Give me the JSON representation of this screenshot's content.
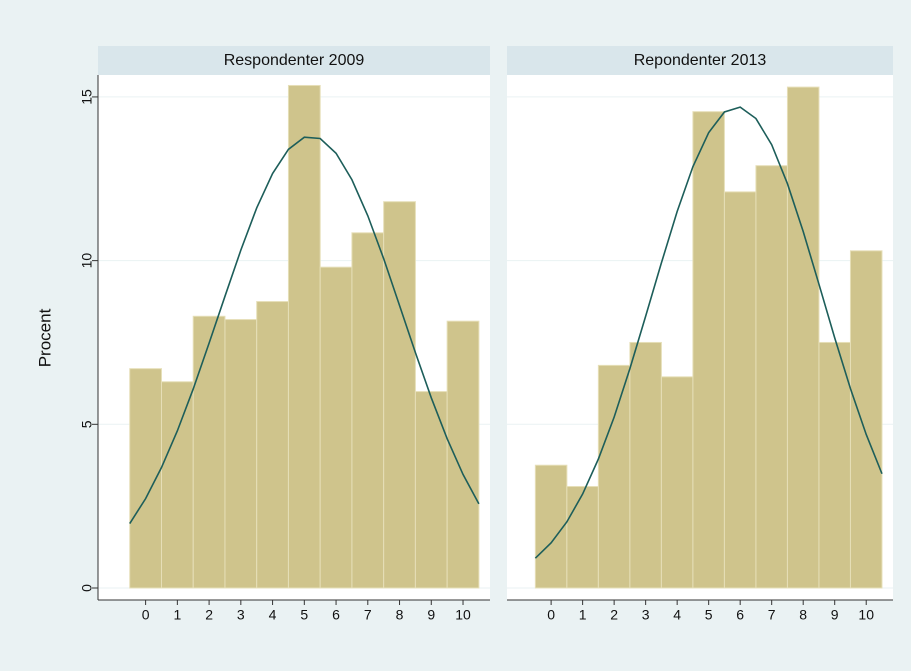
{
  "chart_data": [
    {
      "type": "histogram",
      "title": "Respondenter 2009",
      "ylabel": "Procent",
      "bins": [
        -0.5,
        0.5,
        1.5,
        2.5,
        3.5,
        4.5,
        5.5,
        6.5,
        7.5,
        8.5,
        9.5,
        10.5
      ],
      "values": [
        6.7,
        6.3,
        8.3,
        8.2,
        8.75,
        15.35,
        9.8,
        10.85,
        11.8,
        6.0,
        8.15
      ],
      "color": "#cfc48c",
      "grid": true,
      "xlim": [
        -1.5,
        10.85
      ],
      "xticks": [
        0,
        1,
        2,
        3,
        4,
        5,
        6,
        7,
        8,
        9,
        10
      ],
      "ylim": [
        0,
        15.67
      ],
      "yticks": [
        0,
        5,
        10,
        15
      ],
      "curve": {
        "color": "#1d5e5a",
        "x": [
          -0.5,
          0,
          0.5,
          1,
          1.5,
          2,
          2.5,
          3,
          3.5,
          4,
          4.5,
          5,
          5.5,
          6,
          6.5,
          7,
          7.5,
          8,
          8.5,
          9,
          9.5,
          10,
          10.5
        ],
        "values": [
          1.97,
          2.73,
          3.68,
          4.8,
          6.08,
          7.48,
          8.91,
          10.32,
          11.61,
          12.66,
          13.4,
          13.77,
          13.73,
          13.28,
          12.47,
          11.37,
          10.06,
          8.63,
          7.19,
          5.81,
          4.56,
          3.47,
          2.57
        ]
      }
    },
    {
      "type": "histogram",
      "title": "Repondenter 2013",
      "bins": [
        -0.5,
        0.5,
        1.5,
        2.5,
        3.5,
        4.5,
        5.5,
        6.5,
        7.5,
        8.5,
        9.5,
        10.5
      ],
      "values": [
        3.75,
        3.1,
        6.8,
        7.5,
        6.45,
        14.55,
        12.1,
        12.9,
        15.3,
        7.5,
        10.3
      ],
      "color": "#cfc48c",
      "grid": true,
      "xlim": [
        -1.4,
        10.85
      ],
      "xticks": [
        0,
        1,
        2,
        3,
        4,
        5,
        6,
        7,
        8,
        9,
        10
      ],
      "ylim": [
        0,
        15.67
      ],
      "curve": {
        "color": "#1d5e5a",
        "x": [
          -0.5,
          0,
          0.5,
          1,
          1.5,
          2,
          2.5,
          3,
          3.5,
          4,
          4.5,
          5,
          5.5,
          6,
          6.5,
          7,
          7.5,
          8,
          8.5,
          9,
          9.5,
          10,
          10.5
        ],
        "values": [
          0.91,
          1.38,
          2.02,
          2.87,
          3.94,
          5.22,
          6.7,
          8.3,
          9.93,
          11.5,
          12.87,
          13.91,
          14.54,
          14.69,
          14.34,
          13.54,
          12.35,
          10.89,
          9.28,
          7.64,
          6.09,
          4.69,
          3.49
        ]
      }
    }
  ]
}
